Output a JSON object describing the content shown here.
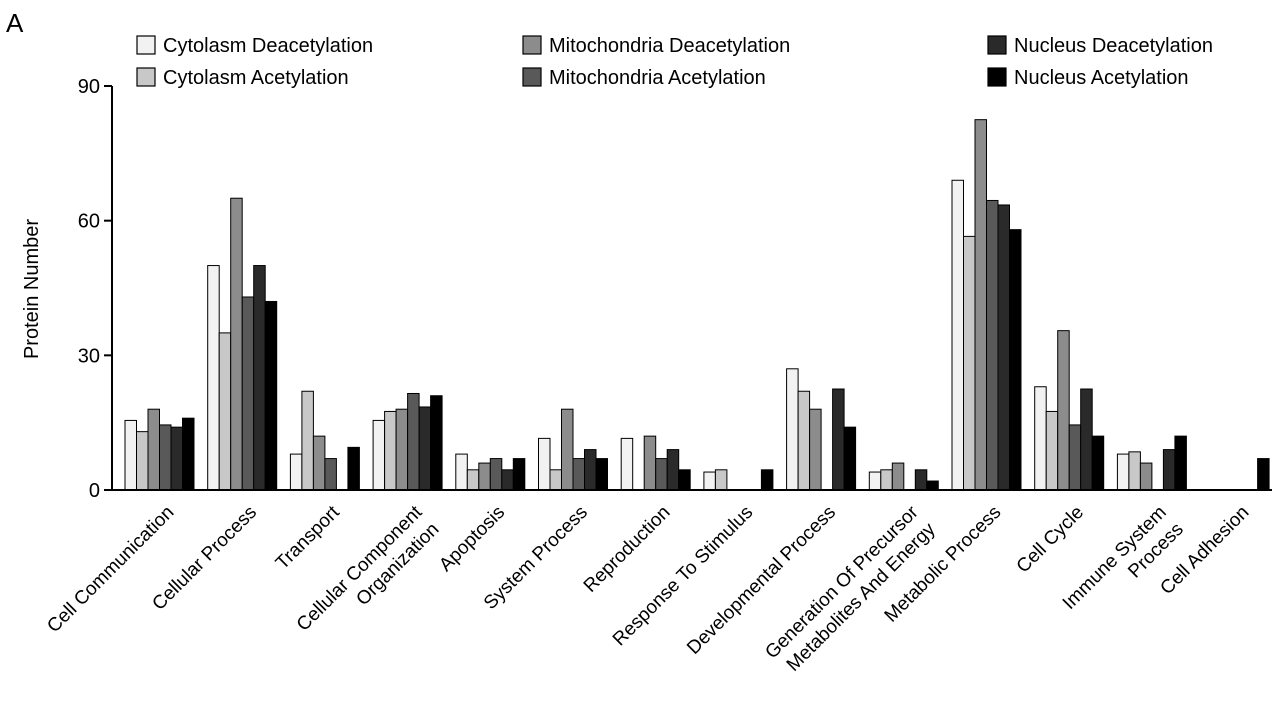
{
  "panel_label": "A",
  "chart_data": {
    "type": "bar",
    "title": "",
    "xlabel": "",
    "ylabel": "Protein Number",
    "ylim": [
      0,
      90
    ],
    "yticks": [
      0,
      30,
      60,
      90
    ],
    "legend_position": "top",
    "categories": [
      [
        "Cell Communication"
      ],
      [
        "Cellular Process"
      ],
      [
        "Transport"
      ],
      [
        "Cellular Component",
        "Organization"
      ],
      [
        "Apoptosis"
      ],
      [
        "System Process"
      ],
      [
        "Reproduction"
      ],
      [
        "Response To Stimulus"
      ],
      [
        "Developmental Process"
      ],
      [
        "Generation Of Precursor",
        "Metabolites And Energy"
      ],
      [
        "Metabolic Process"
      ],
      [
        "Cell Cycle"
      ],
      [
        "Immune System",
        "Process"
      ],
      [
        "Cell Adhesion"
      ]
    ],
    "series": [
      {
        "name": "Cytolasm Deacetylation",
        "color": "#f2f2f2",
        "values": [
          15.5,
          50,
          8,
          15.5,
          8,
          11.5,
          11.5,
          4,
          27,
          4,
          69,
          23,
          8,
          0
        ]
      },
      {
        "name": "Cytolasm Acetylation",
        "color": "#c8c8c8",
        "values": [
          13,
          35,
          22,
          17.5,
          4.5,
          4.5,
          0,
          4.5,
          22,
          4.5,
          56.5,
          17.5,
          8.5,
          0
        ]
      },
      {
        "name": "Mitochondria Deacetylation",
        "color": "#8c8c8c",
        "values": [
          18,
          65,
          12,
          18,
          6,
          18,
          12,
          0,
          18,
          6,
          82.5,
          35.5,
          6,
          0
        ]
      },
      {
        "name": "Mitochondria Acetylation",
        "color": "#595959",
        "values": [
          14.5,
          43,
          7,
          21.5,
          7,
          7,
          7,
          0,
          0,
          0,
          64.5,
          14.5,
          0,
          0
        ]
      },
      {
        "name": "Nucleus Deacetylation",
        "color": "#2a2a2a",
        "values": [
          14,
          50,
          0,
          18.5,
          4.5,
          9,
          9,
          0,
          22.5,
          4.5,
          63.5,
          22.5,
          9,
          0
        ]
      },
      {
        "name": "Nucleus Acetylation",
        "color": "#000000",
        "values": [
          16,
          42,
          9.5,
          21,
          7,
          7,
          4.5,
          4.5,
          14,
          2,
          58,
          12,
          12,
          7
        ]
      }
    ]
  }
}
